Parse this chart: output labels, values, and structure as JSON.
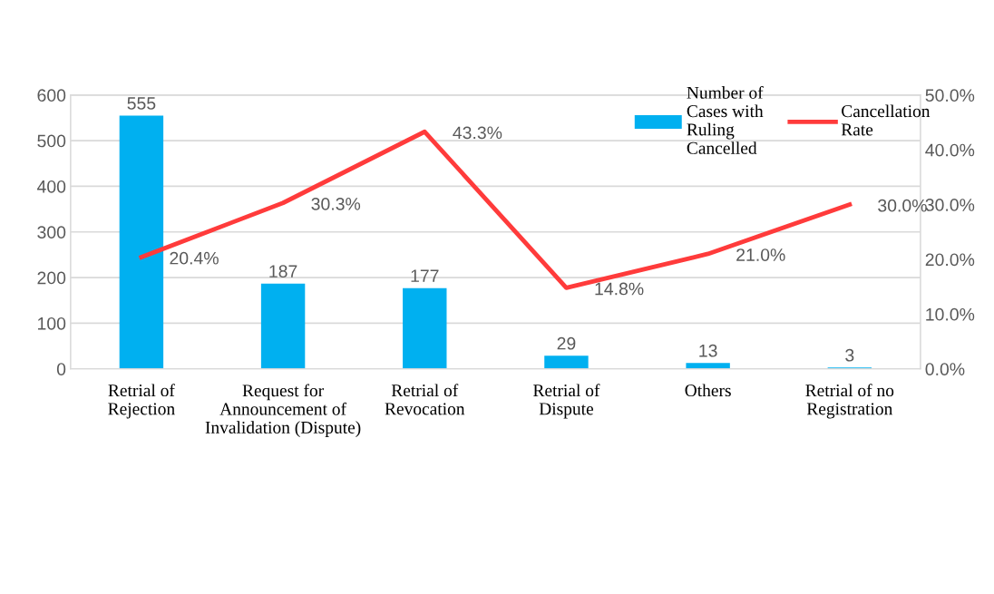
{
  "chart_data": {
    "type": "bar",
    "categories": [
      "Retrial of\nRejection",
      "Request for\nAnnouncement of\nInvalidation (Dispute)",
      "Retrial of\nRevocation",
      "Retrial of\nDispute",
      "Others",
      "Retrial of no\nRegistration"
    ],
    "series": [
      {
        "name": "Number of\nCases with\nRuling\nCancelled",
        "color": "#00b0f0",
        "values": [
          555,
          187,
          177,
          29,
          13,
          3
        ],
        "value_labels": [
          "555",
          "187",
          "177",
          "29",
          "13",
          "3"
        ]
      },
      {
        "name": "Cancellation\nRate",
        "type": "line",
        "axis": "y2",
        "color": "#ff3b3b",
        "values": [
          20.4,
          30.3,
          43.3,
          14.8,
          21.0,
          30.0
        ],
        "value_labels": [
          "20.4%",
          "30.3%",
          "43.3%",
          "14.8%",
          "21.0%",
          "30.0%"
        ]
      }
    ],
    "ylim": [
      0,
      600
    ],
    "yticks": [
      0,
      100,
      200,
      300,
      400,
      500,
      600
    ],
    "y2lim": [
      0,
      50
    ],
    "y2ticks": [
      {
        "value": 0,
        "label": "0.0%"
      },
      {
        "value": 10,
        "label": "10.0%"
      },
      {
        "value": 20,
        "label": "20.0%"
      },
      {
        "value": 30,
        "label": "30.0%"
      },
      {
        "value": 40,
        "label": "40.0%"
      },
      {
        "value": 50,
        "label": "50.0%"
      }
    ],
    "grid": "y",
    "legend": "top right",
    "marker": "none",
    "line_style": "solid"
  }
}
